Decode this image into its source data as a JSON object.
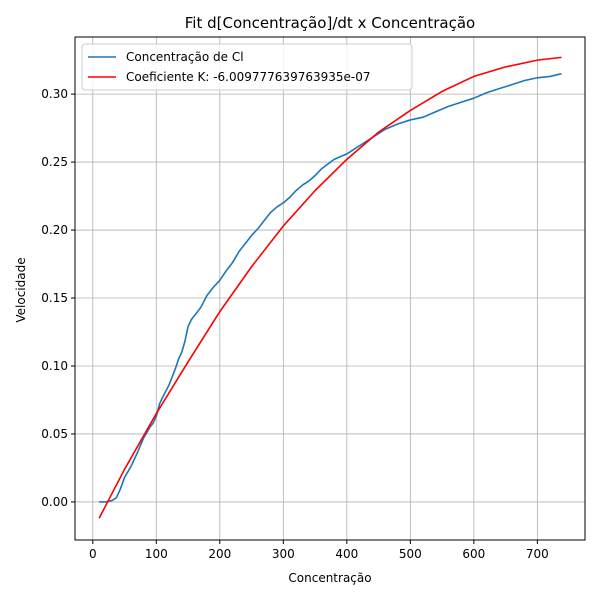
{
  "chart_data": {
    "type": "line",
    "title": "Fit d[Concentração]/dt x Concentração",
    "xlabel": "Concentração",
    "ylabel": "Velocidade",
    "xlim": [
      -28,
      775
    ],
    "ylim": [
      -0.028,
      0.342
    ],
    "xticks": [
      0,
      100,
      200,
      300,
      400,
      500,
      600,
      700
    ],
    "yticks": [
      0.0,
      0.05,
      0.1,
      0.15,
      0.2,
      0.25,
      0.3
    ],
    "xtick_labels": [
      "0",
      "100",
      "200",
      "300",
      "400",
      "500",
      "600",
      "700"
    ],
    "ytick_labels": [
      "0.00",
      "0.05",
      "0.10",
      "0.15",
      "0.20",
      "0.25",
      "0.30"
    ],
    "grid": true,
    "legend_position": "upper-left",
    "series": [
      {
        "name": "Concentração de Cl",
        "color": "#1f77b4",
        "x": [
          10,
          20,
          30,
          37,
          43,
          50,
          60,
          70,
          80,
          90,
          95,
          100,
          105,
          110,
          120,
          130,
          135,
          140,
          145,
          150,
          155,
          160,
          170,
          180,
          190,
          200,
          210,
          220,
          230,
          240,
          250,
          260,
          270,
          280,
          290,
          300,
          310,
          320,
          330,
          340,
          350,
          360,
          380,
          400,
          420,
          440,
          460,
          480,
          500,
          520,
          540,
          560,
          580,
          600,
          620,
          640,
          660,
          680,
          700,
          720,
          738
        ],
        "y": [
          0.0,
          0.0,
          0.001,
          0.003,
          0.009,
          0.018,
          0.026,
          0.036,
          0.047,
          0.055,
          0.058,
          0.063,
          0.072,
          0.077,
          0.086,
          0.098,
          0.105,
          0.11,
          0.118,
          0.129,
          0.134,
          0.137,
          0.143,
          0.152,
          0.158,
          0.163,
          0.17,
          0.176,
          0.184,
          0.19,
          0.196,
          0.201,
          0.207,
          0.213,
          0.217,
          0.22,
          0.224,
          0.229,
          0.233,
          0.236,
          0.24,
          0.245,
          0.252,
          0.256,
          0.262,
          0.268,
          0.274,
          0.278,
          0.281,
          0.283,
          0.287,
          0.291,
          0.294,
          0.297,
          0.301,
          0.304,
          0.307,
          0.31,
          0.312,
          0.313,
          0.315
        ]
      },
      {
        "name": "Coeficiente K: -6.009777639763935e-07",
        "color": "#ff0000",
        "x": [
          10,
          50,
          100,
          150,
          200,
          250,
          300,
          350,
          400,
          450,
          500,
          550,
          600,
          650,
          700,
          738
        ],
        "y": [
          -0.012,
          0.024,
          0.065,
          0.103,
          0.14,
          0.173,
          0.203,
          0.229,
          0.252,
          0.272,
          0.288,
          0.302,
          0.313,
          0.32,
          0.325,
          0.327
        ]
      }
    ]
  }
}
